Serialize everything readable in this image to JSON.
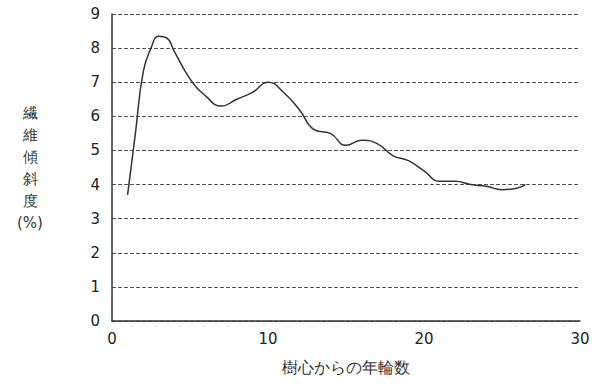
{
  "chart_data": {
    "type": "line",
    "x_label": "樹心からの年輪数",
    "y_label": "繊維傾斜度(%)",
    "x": [
      1,
      1.5,
      2,
      2.5,
      3,
      3.5,
      4,
      5,
      6,
      7,
      8,
      9,
      10,
      11,
      12,
      13,
      14,
      15,
      16,
      17,
      18,
      19,
      20,
      21,
      22,
      23,
      24,
      25,
      26,
      26.5
    ],
    "values": [
      3.7,
      5.5,
      7.3,
      8.0,
      8.35,
      8.3,
      7.9,
      7.1,
      6.6,
      6.3,
      6.5,
      6.7,
      7.0,
      6.7,
      6.2,
      5.6,
      5.5,
      5.15,
      5.3,
      5.2,
      4.85,
      4.7,
      4.4,
      4.1,
      4.1,
      4.0,
      3.95,
      3.85,
      3.9,
      4.0
    ],
    "color": "#333333",
    "xlim": [
      0,
      30
    ],
    "xticks": [
      0,
      10,
      20,
      30
    ],
    "ylim": [
      0,
      9
    ],
    "yticks": [
      0,
      1,
      2,
      3,
      4,
      5,
      6,
      7,
      8,
      9
    ],
    "grid": true
  }
}
